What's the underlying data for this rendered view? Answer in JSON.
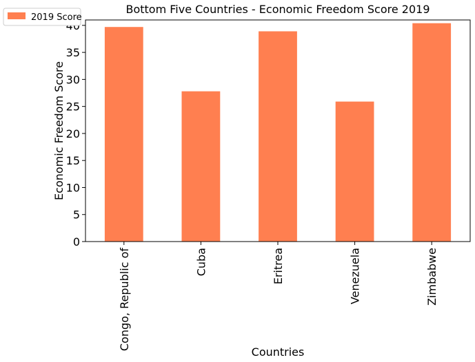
{
  "chart_data": {
    "type": "bar",
    "title": "Bottom Five Countries - Economic Freedom Score 2019",
    "xlabel": "Countries",
    "ylabel": "Economic Freedom Score",
    "categories": [
      "Congo, Republic of",
      "Cuba",
      "Eritrea",
      "Venezuela",
      "Zimbabwe"
    ],
    "series": [
      {
        "name": "2019 Score",
        "values": [
          39.7,
          27.8,
          38.9,
          25.9,
          40.4
        ],
        "color": "#ff7f50"
      }
    ],
    "ylim": [
      0,
      41
    ],
    "yticks": [
      "0",
      "5",
      "10",
      "15",
      "20",
      "25",
      "30",
      "35",
      "40"
    ],
    "grid": false,
    "legend_position": "top-left"
  }
}
